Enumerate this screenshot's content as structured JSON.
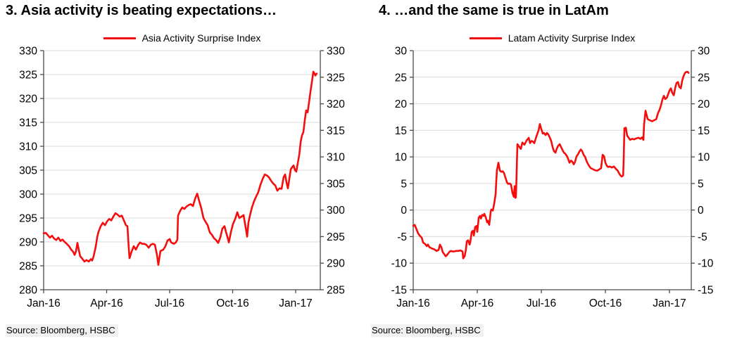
{
  "style": {
    "line_color": "#f50d0d",
    "grid_color": "#d9d9d9",
    "axis_color": "#4a4a4a",
    "text_color": "#000000",
    "source_bg": "#f1f1f1"
  },
  "source": {
    "text": "Source: Bloomberg, HSBC"
  },
  "chart_data": [
    {
      "type": "line",
      "title": "3. Asia activity is beating expectations…",
      "legend": "Asia Activity Surprise Index",
      "series_name": "asia-activity-surprise-index",
      "line_color": "#f50d0d",
      "grid": true,
      "legend_position": "top",
      "x_tick_labels": [
        "Jan-16",
        "Apr-16",
        "Jul-16",
        "Oct-16",
        "Jan-17"
      ],
      "y_left": {
        "min": 280,
        "max": 330,
        "step": 5
      },
      "y_right": {
        "min": 285,
        "max": 330,
        "step": 5
      },
      "points": [
        [
          0.0,
          291.8
        ],
        [
          0.1,
          291.9
        ],
        [
          0.2,
          291.4
        ],
        [
          0.3,
          290.9
        ],
        [
          0.4,
          291.3
        ],
        [
          0.5,
          290.7
        ],
        [
          0.6,
          290.4
        ],
        [
          0.7,
          290.9
        ],
        [
          0.8,
          290.2
        ],
        [
          0.9,
          290.5
        ],
        [
          1.0,
          290.0
        ],
        [
          1.1,
          289.6
        ],
        [
          1.21,
          289.1
        ],
        [
          1.31,
          288.4
        ],
        [
          1.41,
          287.9
        ],
        [
          1.47,
          287.3
        ],
        [
          1.54,
          288.0
        ],
        [
          1.61,
          289.8
        ],
        [
          1.68,
          288.2
        ],
        [
          1.74,
          287.0
        ],
        [
          1.84,
          286.5
        ],
        [
          1.94,
          285.9
        ],
        [
          2.04,
          286.2
        ],
        [
          2.15,
          285.9
        ],
        [
          2.25,
          286.4
        ],
        [
          2.31,
          286.1
        ],
        [
          2.38,
          287.0
        ],
        [
          2.48,
          289.0
        ],
        [
          2.55,
          291.0
        ],
        [
          2.61,
          292.1
        ],
        [
          2.72,
          293.3
        ],
        [
          2.82,
          294.0
        ],
        [
          2.92,
          293.5
        ],
        [
          3.02,
          294.3
        ],
        [
          3.12,
          294.8
        ],
        [
          3.22,
          294.5
        ],
        [
          3.32,
          295.3
        ],
        [
          3.42,
          296.0
        ],
        [
          3.52,
          295.7
        ],
        [
          3.62,
          295.3
        ],
        [
          3.72,
          295.5
        ],
        [
          3.82,
          294.5
        ],
        [
          3.92,
          293.5
        ],
        [
          3.99,
          293.3
        ],
        [
          4.05,
          289.0
        ],
        [
          4.09,
          286.6
        ],
        [
          4.19,
          288.0
        ],
        [
          4.29,
          289.1
        ],
        [
          4.39,
          288.4
        ],
        [
          4.49,
          289.3
        ],
        [
          4.59,
          289.9
        ],
        [
          4.69,
          289.6
        ],
        [
          4.79,
          289.6
        ],
        [
          4.89,
          289.4
        ],
        [
          5.0,
          288.8
        ],
        [
          5.1,
          289.4
        ],
        [
          5.2,
          289.6
        ],
        [
          5.3,
          289.4
        ],
        [
          5.4,
          287.2
        ],
        [
          5.46,
          285.2
        ],
        [
          5.56,
          288.1
        ],
        [
          5.7,
          288.4
        ],
        [
          5.8,
          289.1
        ],
        [
          5.9,
          290.3
        ],
        [
          6.0,
          290.6
        ],
        [
          6.07,
          289.9
        ],
        [
          6.2,
          289.6
        ],
        [
          6.3,
          289.9
        ],
        [
          6.37,
          290.5
        ],
        [
          6.4,
          295.5
        ],
        [
          6.5,
          296.5
        ],
        [
          6.6,
          297.2
        ],
        [
          6.7,
          296.9
        ],
        [
          6.8,
          297.4
        ],
        [
          6.91,
          297.7
        ],
        [
          7.01,
          297.9
        ],
        [
          7.11,
          297.5
        ],
        [
          7.21,
          299.0
        ],
        [
          7.31,
          300.1
        ],
        [
          7.41,
          298.5
        ],
        [
          7.51,
          297.0
        ],
        [
          7.61,
          295.0
        ],
        [
          7.71,
          294.2
        ],
        [
          7.81,
          293.5
        ],
        [
          7.91,
          292.0
        ],
        [
          8.01,
          291.5
        ],
        [
          8.11,
          290.8
        ],
        [
          8.21,
          290.4
        ],
        [
          8.31,
          289.8
        ],
        [
          8.41,
          290.9
        ],
        [
          8.51,
          292.8
        ],
        [
          8.61,
          293.3
        ],
        [
          8.68,
          292.1
        ],
        [
          8.75,
          291.1
        ],
        [
          8.82,
          289.9
        ],
        [
          8.92,
          292.1
        ],
        [
          9.02,
          293.8
        ],
        [
          9.12,
          294.8
        ],
        [
          9.22,
          296.2
        ],
        [
          9.32,
          295.0
        ],
        [
          9.42,
          295.3
        ],
        [
          9.52,
          295.6
        ],
        [
          9.62,
          293.0
        ],
        [
          9.69,
          291.1
        ],
        [
          9.75,
          294.0
        ],
        [
          9.82,
          295.5
        ],
        [
          9.92,
          297.2
        ],
        [
          10.02,
          298.5
        ],
        [
          10.12,
          299.5
        ],
        [
          10.22,
          300.4
        ],
        [
          10.32,
          301.9
        ],
        [
          10.42,
          303.1
        ],
        [
          10.53,
          304.1
        ],
        [
          10.63,
          303.9
        ],
        [
          10.73,
          303.5
        ],
        [
          10.83,
          302.8
        ],
        [
          10.93,
          302.2
        ],
        [
          11.03,
          301.8
        ],
        [
          11.13,
          300.7
        ],
        [
          11.23,
          301.2
        ],
        [
          11.33,
          301.1
        ],
        [
          11.43,
          303.6
        ],
        [
          11.5,
          304.1
        ],
        [
          11.56,
          302.5
        ],
        [
          11.63,
          301.2
        ],
        [
          11.7,
          303.2
        ],
        [
          11.77,
          305.2
        ],
        [
          11.83,
          305.6
        ],
        [
          11.9,
          306.0
        ],
        [
          11.97,
          305.0
        ],
        [
          12.03,
          304.7
        ],
        [
          12.1,
          306.5
        ],
        [
          12.17,
          308.2
        ],
        [
          12.24,
          311.0
        ],
        [
          12.3,
          312.2
        ],
        [
          12.37,
          313.0
        ],
        [
          12.44,
          315.6
        ],
        [
          12.5,
          317.5
        ],
        [
          12.57,
          317.1
        ],
        [
          12.64,
          319.3
        ],
        [
          12.7,
          321.3
        ],
        [
          12.77,
          323.4
        ],
        [
          12.84,
          325.6
        ],
        [
          12.9,
          325.2
        ],
        [
          12.94,
          324.8
        ],
        [
          13.0,
          325.2
        ]
      ]
    },
    {
      "type": "line",
      "title": "4. …and the same is true in LatAm",
      "legend": "Latam Activity Surprise Index",
      "series_name": "latam-activity-surprise-index",
      "line_color": "#f50d0d",
      "grid": true,
      "legend_position": "top",
      "x_tick_labels": [
        "Jan-16",
        "Apr-16",
        "Jul-16",
        "Oct-16",
        "Jan-17"
      ],
      "y_left": {
        "min": -15,
        "max": 30,
        "step": 5
      },
      "y_right": {
        "min": -15,
        "max": 30,
        "step": 5
      },
      "points": [
        [
          0.0,
          -3.0
        ],
        [
          0.07,
          -2.8
        ],
        [
          0.16,
          -3.7
        ],
        [
          0.23,
          -4.4
        ],
        [
          0.3,
          -4.8
        ],
        [
          0.4,
          -5.2
        ],
        [
          0.46,
          -6.1
        ],
        [
          0.56,
          -6.4
        ],
        [
          0.63,
          -6.8
        ],
        [
          0.69,
          -6.5
        ],
        [
          0.76,
          -7.0
        ],
        [
          0.86,
          -7.2
        ],
        [
          0.99,
          -7.4
        ],
        [
          1.09,
          -7.7
        ],
        [
          1.19,
          -7.5
        ],
        [
          1.25,
          -6.5
        ],
        [
          1.32,
          -7.0
        ],
        [
          1.38,
          -7.9
        ],
        [
          1.45,
          -8.3
        ],
        [
          1.52,
          -8.7
        ],
        [
          1.58,
          -8.5
        ],
        [
          1.65,
          -8.1
        ],
        [
          1.71,
          -7.8
        ],
        [
          1.78,
          -7.7
        ],
        [
          1.85,
          -7.8
        ],
        [
          1.91,
          -7.8
        ],
        [
          2.01,
          -7.7
        ],
        [
          2.11,
          -7.7
        ],
        [
          2.21,
          -7.6
        ],
        [
          2.31,
          -7.8
        ],
        [
          2.34,
          -9.1
        ],
        [
          2.41,
          -8.7
        ],
        [
          2.47,
          -7.4
        ],
        [
          2.51,
          -5.9
        ],
        [
          2.57,
          -5.7
        ],
        [
          2.64,
          -6.5
        ],
        [
          2.67,
          -6.1
        ],
        [
          2.74,
          -4.1
        ],
        [
          2.8,
          -3.9
        ],
        [
          2.84,
          -4.8
        ],
        [
          2.9,
          -3.2
        ],
        [
          2.97,
          -3.0
        ],
        [
          3.0,
          -4.1
        ],
        [
          3.07,
          -1.4
        ],
        [
          3.13,
          -1.1
        ],
        [
          3.17,
          -1.6
        ],
        [
          3.23,
          -0.9
        ],
        [
          3.3,
          -1.1
        ],
        [
          3.33,
          -0.7
        ],
        [
          3.4,
          -1.4
        ],
        [
          3.46,
          -2.3
        ],
        [
          3.49,
          -2.0
        ],
        [
          3.56,
          -2.8
        ],
        [
          3.63,
          -0.3
        ],
        [
          3.66,
          0.1
        ],
        [
          3.73,
          -0.1
        ],
        [
          3.79,
          1.2
        ],
        [
          3.86,
          3.0
        ],
        [
          3.89,
          5.5
        ],
        [
          3.92,
          7.5
        ],
        [
          3.99,
          8.9
        ],
        [
          4.06,
          7.4
        ],
        [
          4.12,
          7.2
        ],
        [
          4.19,
          7.3
        ],
        [
          4.25,
          7.0
        ],
        [
          4.32,
          6.1
        ],
        [
          4.39,
          5.2
        ],
        [
          4.45,
          4.9
        ],
        [
          4.52,
          5.0
        ],
        [
          4.58,
          4.8
        ],
        [
          4.65,
          3.2
        ],
        [
          4.71,
          2.5
        ],
        [
          4.75,
          4.5
        ],
        [
          4.78,
          2.3
        ],
        [
          4.81,
          2.4
        ],
        [
          4.85,
          8.0
        ],
        [
          4.88,
          12.4
        ],
        [
          4.95,
          12.0
        ],
        [
          5.04,
          11.5
        ],
        [
          5.11,
          12.7
        ],
        [
          5.21,
          12.3
        ],
        [
          5.31,
          13.1
        ],
        [
          5.41,
          13.6
        ],
        [
          5.47,
          12.6
        ],
        [
          5.54,
          13.0
        ],
        [
          5.6,
          12.9
        ],
        [
          5.67,
          12.6
        ],
        [
          5.74,
          13.5
        ],
        [
          5.8,
          14.2
        ],
        [
          5.87,
          15.0
        ],
        [
          5.93,
          16.2
        ],
        [
          6.0,
          15.2
        ],
        [
          6.07,
          14.4
        ],
        [
          6.13,
          14.5
        ],
        [
          6.2,
          14.1
        ],
        [
          6.26,
          14.5
        ],
        [
          6.33,
          14.2
        ],
        [
          6.4,
          13.6
        ],
        [
          6.46,
          13.0
        ],
        [
          6.53,
          11.8
        ],
        [
          6.59,
          11.1
        ],
        [
          6.66,
          10.8
        ],
        [
          6.73,
          11.6
        ],
        [
          6.79,
          12.1
        ],
        [
          6.86,
          12.4
        ],
        [
          6.92,
          11.9
        ],
        [
          6.99,
          11.3
        ],
        [
          7.06,
          10.8
        ],
        [
          7.12,
          10.6
        ],
        [
          7.19,
          10.2
        ],
        [
          7.25,
          9.7
        ],
        [
          7.32,
          8.9
        ],
        [
          7.39,
          9.3
        ],
        [
          7.45,
          9.1
        ],
        [
          7.52,
          8.6
        ],
        [
          7.58,
          9.1
        ],
        [
          7.65,
          10.1
        ],
        [
          7.72,
          10.5
        ],
        [
          7.78,
          11.0
        ],
        [
          7.85,
          11.4
        ],
        [
          7.91,
          11.1
        ],
        [
          7.98,
          10.4
        ],
        [
          8.05,
          10.0
        ],
        [
          8.11,
          9.3
        ],
        [
          8.18,
          8.7
        ],
        [
          8.24,
          8.3
        ],
        [
          8.31,
          7.9
        ],
        [
          8.41,
          7.7
        ],
        [
          8.51,
          7.5
        ],
        [
          8.61,
          7.4
        ],
        [
          8.7,
          7.6
        ],
        [
          8.8,
          7.9
        ],
        [
          8.87,
          10.4
        ],
        [
          8.94,
          10.1
        ],
        [
          9.0,
          8.9
        ],
        [
          9.07,
          8.3
        ],
        [
          9.13,
          8.1
        ],
        [
          9.2,
          8.2
        ],
        [
          9.3,
          8.0
        ],
        [
          9.4,
          8.2
        ],
        [
          9.5,
          7.7
        ],
        [
          9.56,
          7.5
        ],
        [
          9.63,
          7.0
        ],
        [
          9.69,
          6.6
        ],
        [
          9.76,
          6.3
        ],
        [
          9.83,
          6.5
        ],
        [
          9.86,
          10.0
        ],
        [
          9.89,
          15.4
        ],
        [
          9.96,
          15.5
        ],
        [
          10.02,
          14.0
        ],
        [
          10.09,
          13.6
        ],
        [
          10.16,
          13.2
        ],
        [
          10.25,
          13.4
        ],
        [
          10.35,
          13.3
        ],
        [
          10.45,
          13.5
        ],
        [
          10.55,
          13.6
        ],
        [
          10.65,
          13.4
        ],
        [
          10.72,
          13.7
        ],
        [
          10.78,
          13.2
        ],
        [
          10.81,
          16.0
        ],
        [
          10.88,
          18.7
        ],
        [
          10.98,
          17.1
        ],
        [
          11.08,
          16.9
        ],
        [
          11.18,
          16.7
        ],
        [
          11.28,
          16.9
        ],
        [
          11.38,
          17.1
        ],
        [
          11.47,
          18.3
        ],
        [
          11.54,
          18.9
        ],
        [
          11.61,
          19.8
        ],
        [
          11.67,
          20.8
        ],
        [
          11.74,
          21.5
        ],
        [
          11.8,
          20.9
        ],
        [
          11.87,
          21.1
        ],
        [
          11.94,
          21.8
        ],
        [
          12.0,
          22.5
        ],
        [
          12.07,
          22.9
        ],
        [
          12.13,
          22.1
        ],
        [
          12.2,
          21.6
        ],
        [
          12.27,
          23.0
        ],
        [
          12.33,
          23.9
        ],
        [
          12.4,
          24.1
        ],
        [
          12.46,
          23.2
        ],
        [
          12.53,
          22.9
        ],
        [
          12.6,
          24.4
        ],
        [
          12.66,
          25.2
        ],
        [
          12.73,
          25.8
        ],
        [
          12.79,
          26.0
        ],
        [
          12.86,
          26.0
        ],
        [
          12.89,
          25.8
        ]
      ]
    }
  ]
}
